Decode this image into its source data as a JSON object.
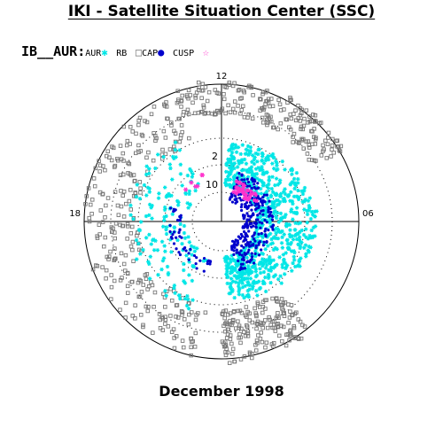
{
  "header": {
    "title": "IKI - Satellite Situation Center (SSC)"
  },
  "legend": {
    "prefix": "IB__AUR:",
    "items": [
      {
        "label": "AUR",
        "marker": "cyan-star"
      },
      {
        "label": "RB",
        "marker": "gray-square"
      },
      {
        "label": "CAP",
        "marker": "blue-dot"
      },
      {
        "label": "CUSP",
        "marker": "magenta-star"
      }
    ]
  },
  "footer": {
    "date": "December 1998"
  },
  "colors": {
    "AUR": "#00e6e6",
    "RB": "#777777",
    "CAP": "#0000cc",
    "CUSP": "#ff33cc",
    "grid": "#000000"
  },
  "chart_data": {
    "type": "scatter",
    "projection": "polar (magnetic local time vs latitude)",
    "hour_labels": {
      "top": "12",
      "left": "18",
      "right": "06"
    },
    "ring_labels": [
      "10",
      "2"
    ],
    "series": [
      {
        "name": "AUR",
        "note": "auroral oval points, densest on morning side"
      },
      {
        "name": "RB",
        "note": "radiation belt points, outer ring"
      },
      {
        "name": "CAP",
        "note": "polar cap points"
      },
      {
        "name": "CUSP",
        "note": "cusp points near noon"
      }
    ],
    "grid": true
  }
}
